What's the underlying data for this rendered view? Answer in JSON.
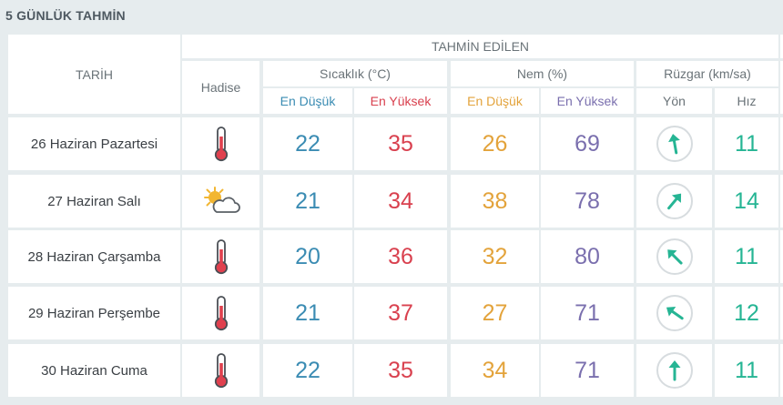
{
  "title": "5 GÜNLÜK TAHMİN",
  "header": {
    "tarih": "TARİH",
    "tahmin_edilen": "TAHMİN EDİLEN",
    "hadise": "Hadise",
    "sicaklik": "Sıcaklık (°C)",
    "nem": "Nem (%)",
    "ruzgar": "Rüzgar (km/sa)",
    "temp_min": "En Düşük",
    "temp_max": "En Yüksek",
    "hum_min": "En Düşük",
    "hum_max": "En Yüksek",
    "yon": "Yön",
    "hiz": "Hız"
  },
  "colors": {
    "temp_min": "#3b8cb3",
    "temp_max": "#d9414f",
    "hum_min": "#e3a33b",
    "hum_max": "#7a6fae",
    "wind": "#26b594"
  },
  "rows": [
    {
      "date": "26 Haziran Pazartesi",
      "icon": "thermometer-hot-icon",
      "temp_min": "22",
      "temp_max": "35",
      "hum_min": "26",
      "hum_max": "69",
      "wind_dir_deg": 170,
      "wind_speed": "11"
    },
    {
      "date": "27 Haziran Salı",
      "icon": "partly-cloudy-icon",
      "temp_min": "21",
      "temp_max": "34",
      "hum_min": "38",
      "hum_max": "78",
      "wind_dir_deg": 220,
      "wind_speed": "14"
    },
    {
      "date": "28 Haziran Çarşamba",
      "icon": "thermometer-hot-icon",
      "temp_min": "20",
      "temp_max": "36",
      "hum_min": "32",
      "hum_max": "80",
      "wind_dir_deg": 135,
      "wind_speed": "11"
    },
    {
      "date": "29 Haziran Perşembe",
      "icon": "thermometer-hot-icon",
      "temp_min": "21",
      "temp_max": "37",
      "hum_min": "27",
      "hum_max": "71",
      "wind_dir_deg": 125,
      "wind_speed": "12"
    },
    {
      "date": "30 Haziran Cuma",
      "icon": "thermometer-hot-icon",
      "temp_min": "22",
      "temp_max": "35",
      "hum_min": "34",
      "hum_max": "71",
      "wind_dir_deg": 180,
      "wind_speed": "11"
    }
  ]
}
